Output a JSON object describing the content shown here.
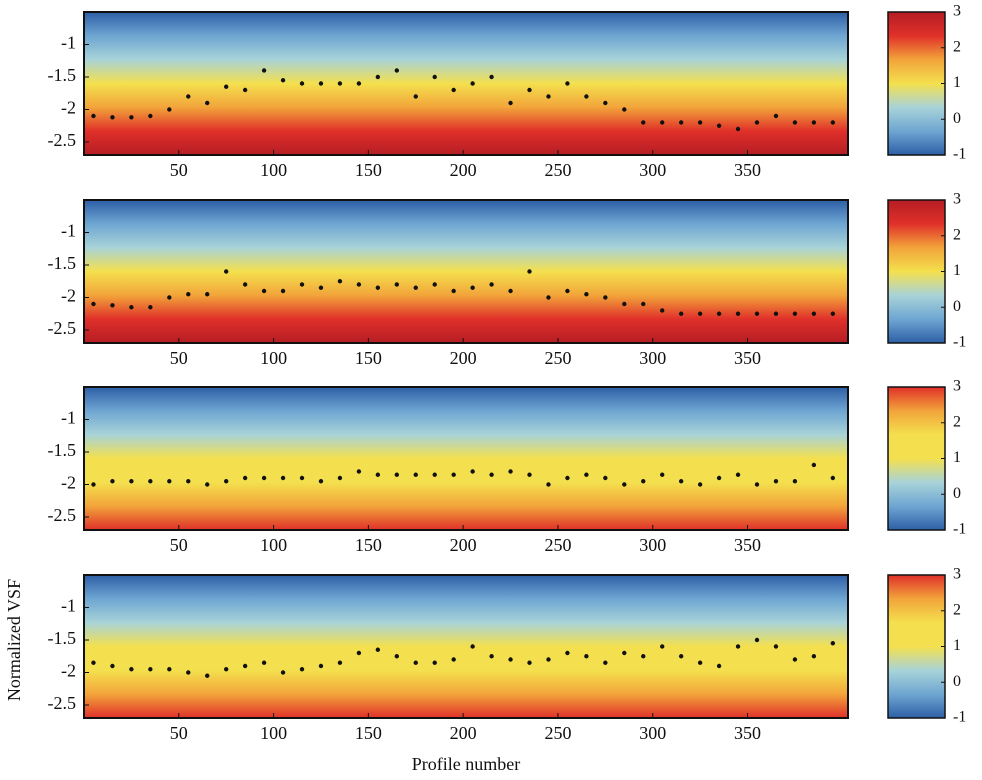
{
  "chart_data": [
    {
      "type": "scatter",
      "color": "#111111",
      "x": [
        5,
        15,
        25,
        35,
        45,
        55,
        65,
        75,
        85,
        95,
        105,
        115,
        125,
        135,
        145,
        155,
        165,
        175,
        185,
        195,
        205,
        215,
        225,
        235,
        245,
        255,
        265,
        275,
        285,
        295,
        305,
        315,
        325,
        335,
        345,
        355,
        365,
        375,
        385,
        395
      ],
      "series": [
        {
          "values": [
            -2.1,
            -2.12,
            -2.12,
            -2.1,
            -2.0,
            -1.8,
            -1.9,
            -1.65,
            -1.7,
            -1.4,
            -1.55,
            -1.6,
            -1.6,
            -1.6,
            -1.6,
            -1.5,
            -1.4,
            -1.8,
            -1.5,
            -1.7,
            -1.6,
            -1.5,
            -1.9,
            -1.7,
            -1.8,
            -1.6,
            -1.8,
            -1.9,
            -2.0,
            -2.2,
            -2.2,
            -2.2,
            -2.2,
            -2.25,
            -2.3,
            -2.2,
            -2.1,
            -2.2,
            -2.2,
            -2.2
          ]
        }
      ],
      "xlim": [
        0,
        403
      ],
      "xticks": [
        50,
        100,
        150,
        200,
        250,
        300,
        350
      ],
      "ylim": [
        -2.7,
        -0.5
      ],
      "yticks": [
        -1,
        -1.5,
        -2,
        -2.5
      ],
      "colorbar": {
        "lim": [
          -1,
          3
        ],
        "ticks": [
          3,
          2,
          1,
          0,
          -1
        ]
      },
      "colormap": [
        "#b51d24",
        "#e0302a",
        "#f2a43a",
        "#f4e04e",
        "#a8d3d8",
        "#6ea6d2",
        "#2d5fa6"
      ]
    },
    {
      "type": "scatter",
      "color": "#111111",
      "x": [
        5,
        15,
        25,
        35,
        45,
        55,
        65,
        75,
        85,
        95,
        105,
        115,
        125,
        135,
        145,
        155,
        165,
        175,
        185,
        195,
        205,
        215,
        225,
        235,
        245,
        255,
        265,
        275,
        285,
        295,
        305,
        315,
        325,
        335,
        345,
        355,
        365,
        375,
        385,
        395
      ],
      "series": [
        {
          "values": [
            -2.1,
            -2.12,
            -2.15,
            -2.15,
            -2.0,
            -1.95,
            -1.95,
            -1.6,
            -1.8,
            -1.9,
            -1.9,
            -1.8,
            -1.85,
            -1.75,
            -1.8,
            -1.85,
            -1.8,
            -1.85,
            -1.8,
            -1.9,
            -1.85,
            -1.8,
            -1.9,
            -1.6,
            -2.0,
            -1.9,
            -1.95,
            -2.0,
            -2.1,
            -2.1,
            -2.2,
            -2.25,
            -2.25,
            -2.25,
            -2.25,
            -2.25,
            -2.25,
            -2.25,
            -2.25,
            -2.25
          ]
        }
      ],
      "xlim": [
        0,
        403
      ],
      "xticks": [
        50,
        100,
        150,
        200,
        250,
        300,
        350
      ],
      "ylim": [
        -2.7,
        -0.5
      ],
      "yticks": [
        -1,
        -1.5,
        -2,
        -2.5
      ],
      "colorbar": {
        "lim": [
          -1,
          3
        ],
        "ticks": [
          3,
          2,
          1,
          0,
          -1
        ]
      },
      "colormap": [
        "#b51d24",
        "#e0302a",
        "#f2a43a",
        "#f4e04e",
        "#a8d3d8",
        "#6ea6d2",
        "#2d5fa6"
      ]
    },
    {
      "type": "scatter",
      "color": "#111111",
      "x": [
        5,
        15,
        25,
        35,
        45,
        55,
        65,
        75,
        85,
        95,
        105,
        115,
        125,
        135,
        145,
        155,
        165,
        175,
        185,
        195,
        205,
        215,
        225,
        235,
        245,
        255,
        265,
        275,
        285,
        295,
        305,
        315,
        325,
        335,
        345,
        355,
        365,
        375,
        385,
        395
      ],
      "series": [
        {
          "values": [
            -2.0,
            -1.95,
            -1.95,
            -1.95,
            -1.95,
            -1.95,
            -2.0,
            -1.95,
            -1.9,
            -1.9,
            -1.9,
            -1.9,
            -1.95,
            -1.9,
            -1.8,
            -1.85,
            -1.85,
            -1.85,
            -1.85,
            -1.85,
            -1.8,
            -1.85,
            -1.8,
            -1.85,
            -2.0,
            -1.9,
            -1.85,
            -1.9,
            -2.0,
            -1.95,
            -1.85,
            -1.95,
            -2.0,
            -1.9,
            -1.85,
            -2.0,
            -1.95,
            -1.95,
            -1.7,
            -1.9
          ]
        }
      ],
      "xlim": [
        0,
        403
      ],
      "xticks": [
        50,
        100,
        150,
        200,
        250,
        300,
        350
      ],
      "ylim": [
        -2.7,
        -0.5
      ],
      "yticks": [
        -1,
        -1.5,
        -2,
        -2.5
      ],
      "colorbar": {
        "lim": [
          -1,
          3
        ],
        "ticks": [
          3,
          2,
          1,
          0,
          -1
        ]
      },
      "colormap": [
        "#e0302a",
        "#f2a43a",
        "#f4e04e",
        "#f4e04e",
        "#a8d3d8",
        "#6ea6d2",
        "#2d5fa6"
      ]
    },
    {
      "type": "scatter",
      "color": "#111111",
      "ylabel": "Normalized VSF",
      "xlabel": "Profile number",
      "x": [
        5,
        15,
        25,
        35,
        45,
        55,
        65,
        75,
        85,
        95,
        105,
        115,
        125,
        135,
        145,
        155,
        165,
        175,
        185,
        195,
        205,
        215,
        225,
        235,
        245,
        255,
        265,
        275,
        285,
        295,
        305,
        315,
        325,
        335,
        345,
        355,
        365,
        375,
        385,
        395
      ],
      "series": [
        {
          "values": [
            -1.85,
            -1.9,
            -1.95,
            -1.95,
            -1.95,
            -2.0,
            -2.05,
            -1.95,
            -1.9,
            -1.85,
            -2.0,
            -1.95,
            -1.9,
            -1.85,
            -1.7,
            -1.65,
            -1.75,
            -1.85,
            -1.85,
            -1.8,
            -1.6,
            -1.75,
            -1.8,
            -1.85,
            -1.8,
            -1.7,
            -1.75,
            -1.85,
            -1.7,
            -1.75,
            -1.6,
            -1.75,
            -1.85,
            -1.9,
            -1.6,
            -1.5,
            -1.6,
            -1.8,
            -1.75,
            -1.55
          ]
        }
      ],
      "xlim": [
        0,
        403
      ],
      "xticks": [
        50,
        100,
        150,
        200,
        250,
        300,
        350
      ],
      "ylim": [
        -2.7,
        -0.5
      ],
      "yticks": [
        -1,
        -1.5,
        -2,
        -2.5
      ],
      "colorbar": {
        "lim": [
          -1,
          3
        ],
        "ticks": [
          3,
          2,
          1,
          0,
          -1
        ]
      },
      "colormap": [
        "#e0302a",
        "#f2a43a",
        "#f4e04e",
        "#f4e04e",
        "#a8d3d8",
        "#6ea6d2",
        "#2d5fa6"
      ]
    }
  ]
}
